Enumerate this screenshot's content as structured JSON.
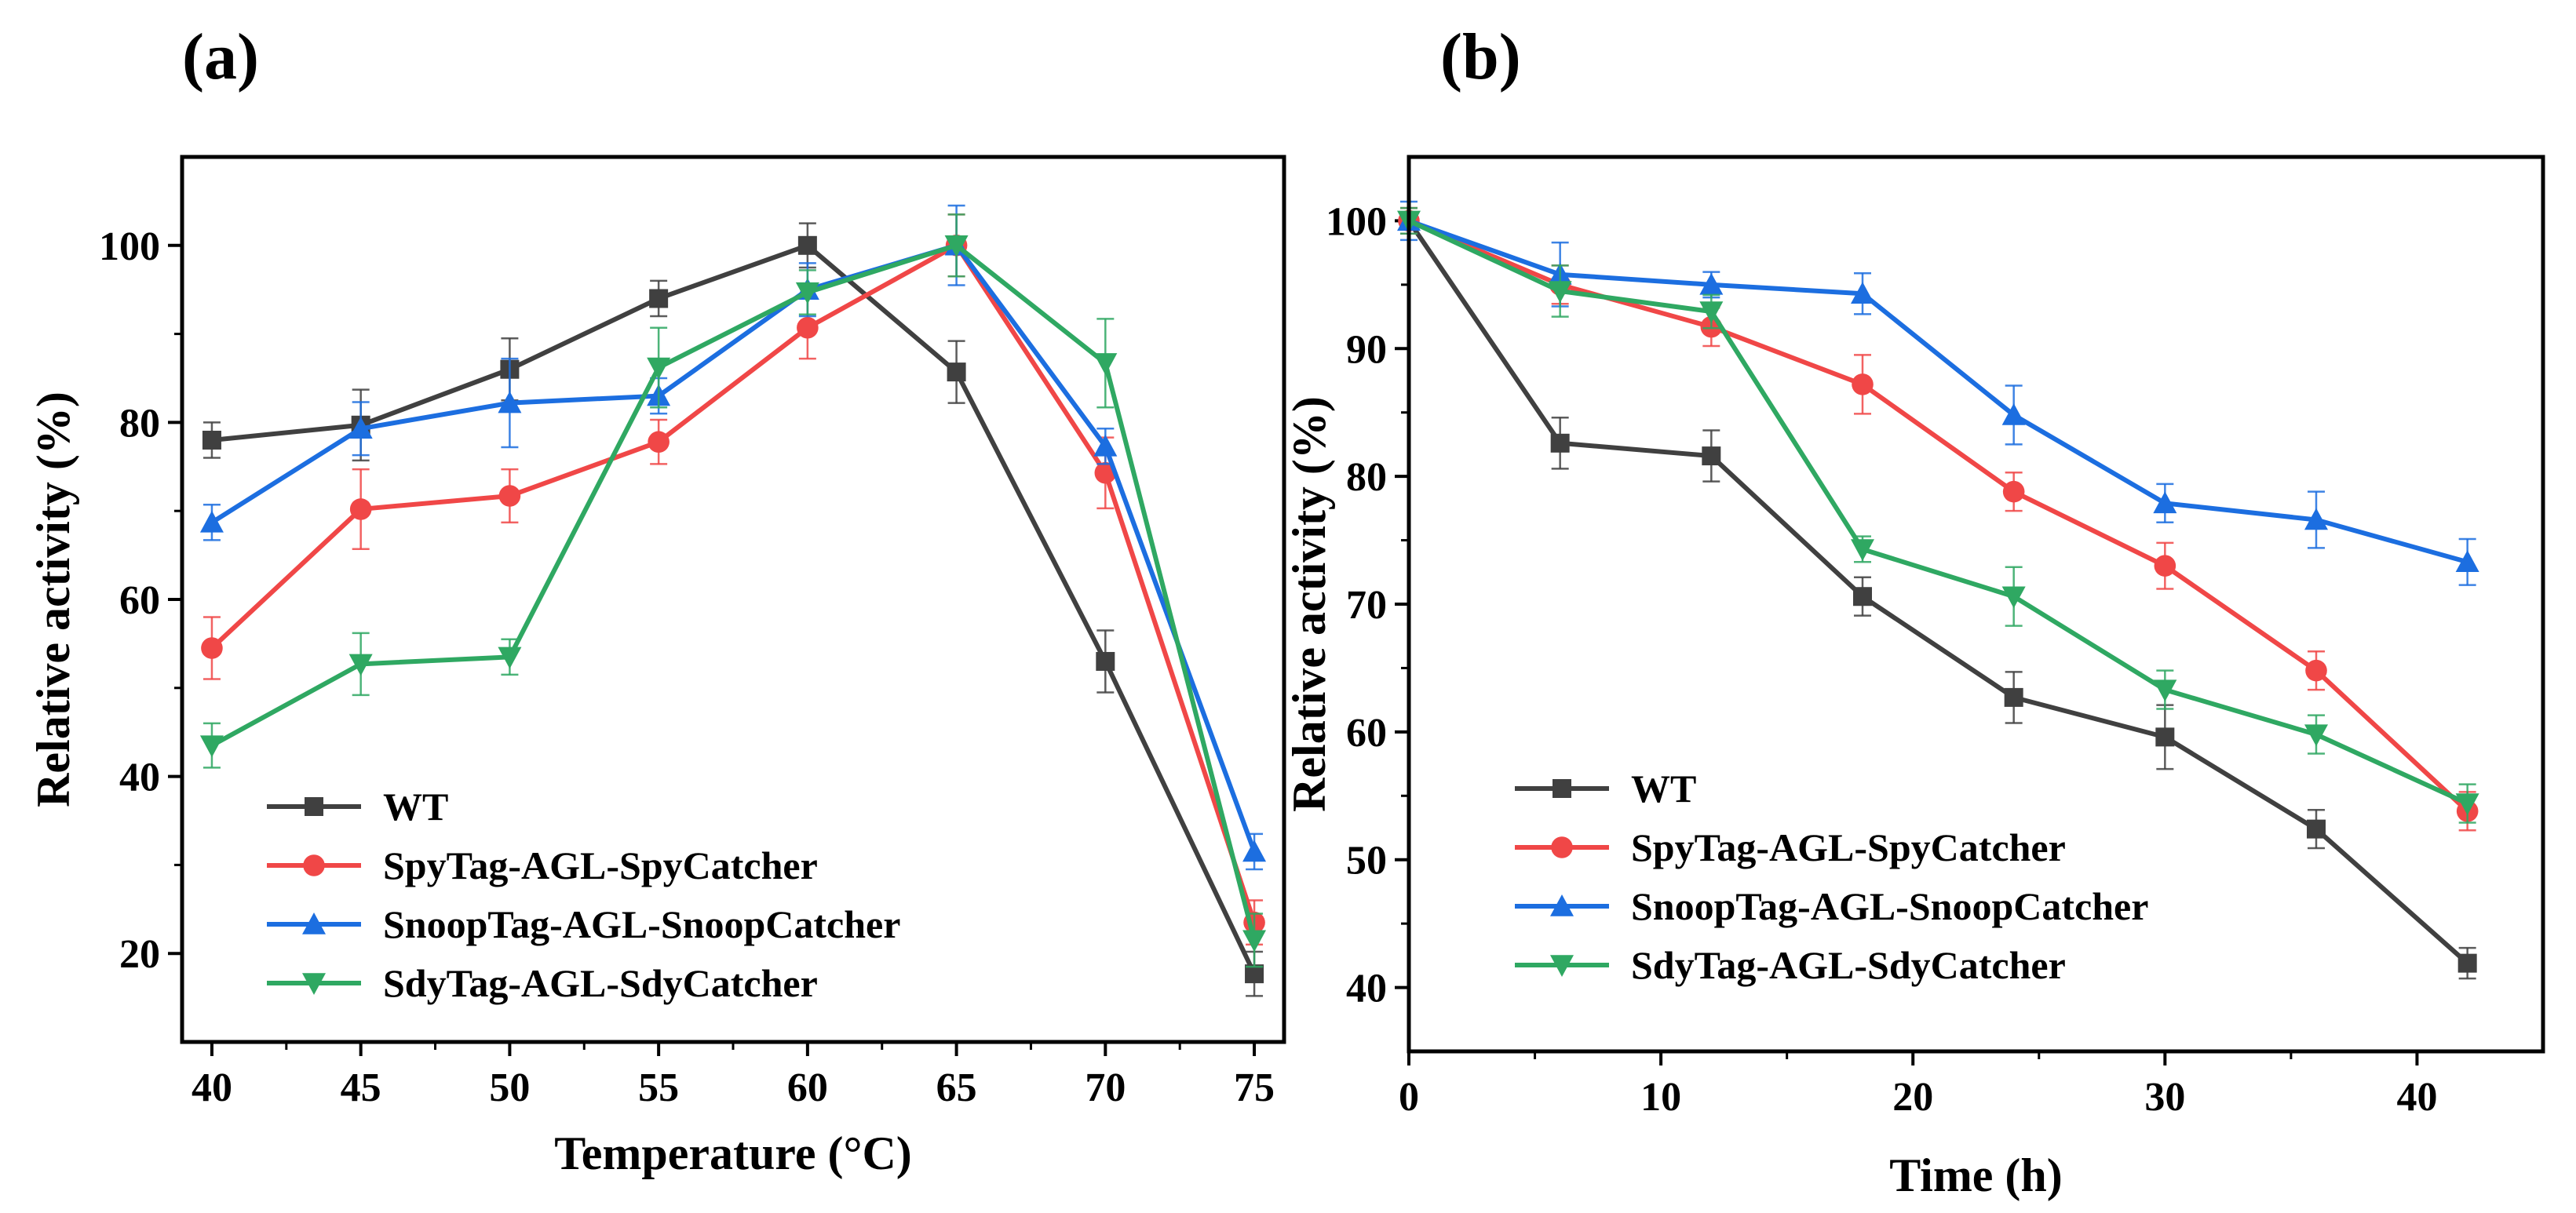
{
  "panels": [
    {
      "label": "(a)",
      "chart_data": {
        "type": "line",
        "title": "",
        "xlabel": "Temperature (°C)",
        "ylabel": "Relative activity (%)",
        "xlim": [
          39,
          76
        ],
        "ylim": [
          10,
          110
        ],
        "xticks": [
          40,
          45,
          50,
          55,
          60,
          65,
          70,
          75
        ],
        "yticks": [
          20,
          40,
          60,
          80,
          100
        ],
        "x": [
          40,
          45,
          50,
          55,
          60,
          65,
          70,
          75
        ],
        "legend_position": "bottom-left",
        "grid": false,
        "series": [
          {
            "name": "WT",
            "color": "#404040",
            "marker": "square",
            "values": [
              78,
              79.7,
              86,
              94,
              100,
              85.7,
              53,
              17.7
            ],
            "errors": [
              2,
              4,
              3.5,
              2,
              2.5,
              3.5,
              3.5,
              2.5
            ]
          },
          {
            "name": "SpyTag-AGL-SpyCatcher",
            "color": "#f04747",
            "marker": "circle",
            "values": [
              54.5,
              70.2,
              71.7,
              77.8,
              90.7,
              100,
              74.3,
              23.5
            ],
            "errors": [
              3.5,
              4.5,
              3,
              2.5,
              3.5,
              3.5,
              4,
              2.5
            ]
          },
          {
            "name": "SnoopTag-AGL-SnoopCatcher",
            "color": "#1c6ee0",
            "marker": "triangle-up",
            "values": [
              68.7,
              79.3,
              82.2,
              83,
              95,
              100,
              77.3,
              31.5
            ],
            "errors": [
              2,
              3,
              5,
              2,
              3,
              4.5,
              2,
              2
            ]
          },
          {
            "name": "SdyTag-AGL-SdyCatcher",
            "color": "#2fa862",
            "marker": "triangle-down",
            "values": [
              43.5,
              52.7,
              53.5,
              86.2,
              94.7,
              100,
              86.7,
              21.5
            ],
            "errors": [
              2.5,
              3.5,
              2,
              4.5,
              2.5,
              3.5,
              5,
              3
            ]
          }
        ]
      }
    },
    {
      "label": "(b)",
      "chart_data": {
        "type": "line",
        "title": "",
        "xlabel": "Time (h)",
        "ylabel": "Relative activity (%)",
        "xlim": [
          0,
          45
        ],
        "ylim": [
          35,
          105
        ],
        "xticks": [
          0,
          10,
          20,
          30,
          40
        ],
        "yticks": [
          40,
          50,
          60,
          70,
          80,
          90,
          100
        ],
        "x": [
          0,
          6,
          12,
          18,
          24,
          30,
          36,
          42
        ],
        "legend_position": "bottom-left",
        "grid": false,
        "series": [
          {
            "name": "WT",
            "color": "#404040",
            "marker": "square",
            "values": [
              100,
              82.6,
              81.6,
              70.6,
              62.7,
              59.6,
              52.4,
              41.9
            ],
            "errors": [
              1,
              2,
              2,
              1.5,
              2,
              2.5,
              1.5,
              1.2
            ]
          },
          {
            "name": "SpyTag-AGL-SpyCatcher",
            "color": "#f04747",
            "marker": "circle",
            "values": [
              100,
              95,
              91.7,
              87.2,
              78.8,
              73,
              64.8,
              53.8
            ],
            "errors": [
              1,
              1.5,
              1.5,
              2.3,
              1.5,
              1.8,
              1.5,
              1.5
            ]
          },
          {
            "name": "SnoopTag-AGL-SnoopCatcher",
            "color": "#1c6ee0",
            "marker": "triangle-up",
            "values": [
              100,
              95.8,
              95,
              94.3,
              84.8,
              77.9,
              76.6,
              73.3
            ],
            "errors": [
              1.5,
              2.5,
              1,
              1.6,
              2.3,
              1.5,
              2.2,
              1.8
            ]
          },
          {
            "name": "SdyTag-AGL-SdyCatcher",
            "color": "#2fa862",
            "marker": "triangle-down",
            "values": [
              100,
              94.5,
              92.9,
              74.3,
              70.6,
              63.3,
              59.8,
              54.4
            ],
            "errors": [
              1,
              2,
              1.3,
              1,
              2.3,
              1.5,
              1.5,
              1.5
            ]
          }
        ]
      }
    }
  ]
}
